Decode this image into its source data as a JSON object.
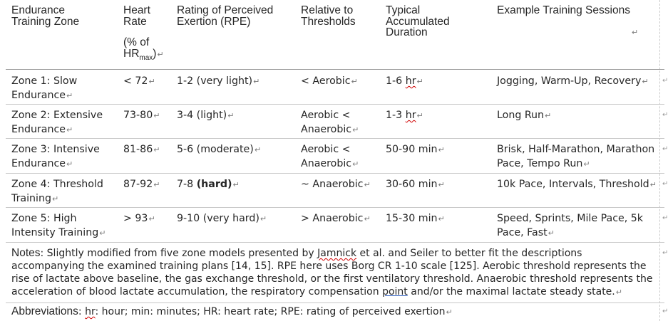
{
  "headers": {
    "zone": [
      "Endurance",
      "Training Zone"
    ],
    "hr": [
      "Heart",
      "Rate"
    ],
    "hr_unit_1": "(% of",
    "hr_unit_base": "HR",
    "hr_unit_sub": "max",
    "hr_unit_tail": ")",
    "rpe": [
      "Rating of Perceived",
      "Exertion (RPE)"
    ],
    "thresholds": [
      "Relative to",
      "Thresholds"
    ],
    "duration": [
      "Typical",
      "Accumulated",
      "Duration"
    ],
    "sessions": "Example Training Sessions"
  },
  "rows": [
    {
      "zone": [
        "Zone 1: Slow",
        "Endurance"
      ],
      "hr": "< 72",
      "rpe": "1-2 (very light)",
      "threshold": [
        "< Aerobic"
      ],
      "duration_num": "1-6",
      "duration_unit": "hr",
      "sessions": [
        "Jogging, Warm-Up, Recovery"
      ]
    },
    {
      "zone": [
        "Zone 2: Extensive",
        "Endurance"
      ],
      "hr": "73-80",
      "rpe": "3-4  (light)",
      "threshold": [
        "Aerobic <",
        "Anaerobic"
      ],
      "duration_num": "1-3",
      "duration_unit": "hr",
      "sessions": [
        "Long Run"
      ]
    },
    {
      "zone": [
        "Zone 3: Intensive",
        "Endurance"
      ],
      "hr": "81-86",
      "rpe": "5-6  (moderate)",
      "threshold": [
        "Aerobic <",
        "Anaerobic"
      ],
      "duration_num": "50-90",
      "duration_unit": "min",
      "sessions": [
        "Brisk, Half-Marathon, Marathon",
        "Pace, Tempo Run"
      ]
    },
    {
      "zone": [
        "Zone 4: Threshold",
        "Training"
      ],
      "hr": "87-92",
      "rpe_num": "7-8",
      "rpe_word": "(hard)",
      "threshold": [
        "~ Anaerobic"
      ],
      "duration_num": "30-60",
      "duration_unit": "min",
      "sessions": [
        "10k Pace, Intervals, Threshold"
      ]
    },
    {
      "zone": [
        "Zone 5: High",
        "Intensity Training"
      ],
      "hr": "> 93",
      "rpe": "9-10 (very hard)",
      "threshold": [
        "> Anaerobic"
      ],
      "duration_num": "15-30",
      "duration_unit": "min",
      "sessions": [
        "Speed, Sprints, Mile Pace, 5k",
        "Pace, Fast"
      ]
    }
  ],
  "notes": {
    "label": "Notes",
    "text_1": ": Slightly modified from five zone models presented by ",
    "jamnick": "Jamnick",
    "text_2": " et al. and Seiler to better fit the descriptions accompanying the examined training plans [14, 15]. RPE here uses Borg CR 1-10 scale [125]. Aerobic threshold represents the rise of lactate above baseline, the gas exchange threshold, or the first ventilatory threshold. Anaerobic threshold represents the acceleration of blood lactate accumulation, the respiratory compensation ",
    "point": "point",
    "text_3": " and/or the maximal lactate steady state."
  },
  "abbreviations": {
    "label": "Abbreviations",
    "text_1": ": ",
    "hr": "hr",
    "text_2": ": hour; min: minutes; HR: heart rate; RPE: rating of perceived exertion"
  },
  "marks": {
    "paragraph": "↵",
    "end_of_row": "↵"
  }
}
